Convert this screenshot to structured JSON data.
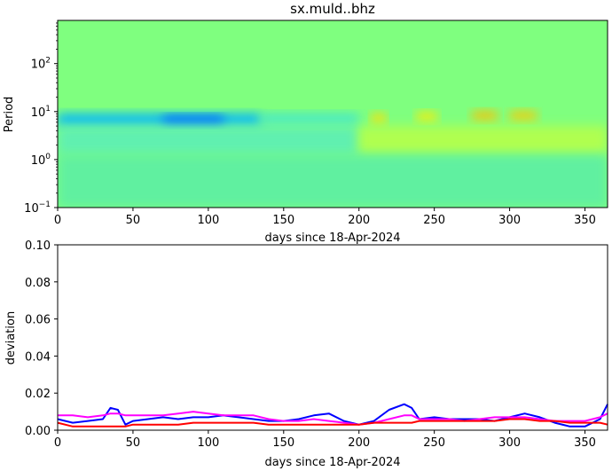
{
  "title": "sx.muld..bhz",
  "chart_data": [
    {
      "type": "heatmap",
      "xlabel": "days since 18-Apr-2024",
      "ylabel": "Period",
      "xlim": [
        0,
        365
      ],
      "ylim_log10": [
        -1,
        2.9
      ],
      "xticks": [
        0,
        50,
        100,
        150,
        200,
        250,
        300,
        350
      ],
      "yticks": [
        {
          "base": "10",
          "exp": "−1",
          "log10": -1
        },
        {
          "base": "10",
          "exp": "0",
          "log10": 0
        },
        {
          "base": "10",
          "exp": "1",
          "log10": 1
        },
        {
          "base": "10",
          "exp": "2",
          "log10": 2
        }
      ],
      "background_color": "#7fff7f",
      "features": [
        {
          "x0": 0,
          "x1": 135,
          "y0": 0.7,
          "y1": 0.95,
          "value": "low",
          "color": "#00b4ff"
        },
        {
          "x0": 70,
          "x1": 110,
          "y0": 0.72,
          "y1": 0.9,
          "value": "min",
          "color": "#0064ff"
        },
        {
          "x0": 135,
          "x1": 200,
          "y0": 0.75,
          "y1": 0.95,
          "value": "slightly-low",
          "color": "#40e6d0"
        },
        {
          "x0": 208,
          "x1": 218,
          "y0": 0.75,
          "y1": 0.95,
          "value": "high",
          "color": "#ffe000"
        },
        {
          "x0": 238,
          "x1": 252,
          "y0": 0.8,
          "y1": 0.98,
          "value": "high",
          "color": "#ffec00"
        },
        {
          "x0": 275,
          "x1": 292,
          "y0": 0.82,
          "y1": 1.0,
          "value": "max",
          "color": "#ffc000"
        },
        {
          "x0": 300,
          "x1": 318,
          "y0": 0.82,
          "y1": 1.0,
          "value": "max",
          "color": "#ffc800"
        },
        {
          "x0": 0,
          "x1": 200,
          "y0": 0.1,
          "y1": 0.7,
          "value": "slightly-low",
          "color": "#60f0b0"
        },
        {
          "x0": 200,
          "x1": 365,
          "y0": 0.1,
          "y1": 0.7,
          "value": "slightly-high",
          "color": "#b0ff50"
        },
        {
          "x0": 0,
          "x1": 365,
          "y0": -1,
          "y1": 0.1,
          "value": "slightly-low",
          "color": "#60f0a0"
        }
      ]
    },
    {
      "type": "line",
      "xlabel": "days since 18-Apr-2024",
      "ylabel": "deviation",
      "xlim": [
        0,
        365
      ],
      "ylim": [
        0,
        0.1
      ],
      "xticks": [
        0,
        50,
        100,
        150,
        200,
        250,
        300,
        350
      ],
      "yticks": [
        "0.00",
        "0.02",
        "0.04",
        "0.06",
        "0.08",
        "0.10"
      ],
      "x": [
        0,
        10,
        20,
        30,
        35,
        40,
        45,
        50,
        60,
        70,
        80,
        90,
        100,
        110,
        120,
        130,
        140,
        150,
        160,
        170,
        180,
        190,
        200,
        210,
        220,
        230,
        235,
        240,
        250,
        260,
        270,
        280,
        290,
        300,
        310,
        320,
        330,
        340,
        350,
        360,
        365
      ],
      "series": [
        {
          "name": "blue",
          "color": "#0000ff",
          "values": [
            0.006,
            0.004,
            0.005,
            0.006,
            0.012,
            0.011,
            0.003,
            0.005,
            0.006,
            0.007,
            0.006,
            0.007,
            0.007,
            0.008,
            0.007,
            0.006,
            0.005,
            0.005,
            0.006,
            0.008,
            0.009,
            0.005,
            0.003,
            0.005,
            0.011,
            0.014,
            0.012,
            0.006,
            0.007,
            0.006,
            0.006,
            0.006,
            0.005,
            0.007,
            0.009,
            0.007,
            0.004,
            0.002,
            0.002,
            0.006,
            0.014
          ]
        },
        {
          "name": "magenta",
          "color": "#ff00ff",
          "values": [
            0.008,
            0.008,
            0.007,
            0.008,
            0.009,
            0.009,
            0.008,
            0.008,
            0.008,
            0.008,
            0.009,
            0.01,
            0.009,
            0.008,
            0.008,
            0.008,
            0.006,
            0.005,
            0.005,
            0.006,
            0.005,
            0.004,
            0.003,
            0.004,
            0.006,
            0.008,
            0.008,
            0.006,
            0.006,
            0.006,
            0.005,
            0.006,
            0.007,
            0.007,
            0.007,
            0.006,
            0.005,
            0.005,
            0.005,
            0.007,
            0.009
          ]
        },
        {
          "name": "red",
          "color": "#ff0000",
          "values": [
            0.004,
            0.002,
            0.002,
            0.002,
            0.002,
            0.002,
            0.002,
            0.003,
            0.003,
            0.003,
            0.003,
            0.004,
            0.004,
            0.004,
            0.004,
            0.004,
            0.003,
            0.003,
            0.003,
            0.003,
            0.003,
            0.003,
            0.003,
            0.004,
            0.004,
            0.004,
            0.004,
            0.005,
            0.005,
            0.005,
            0.005,
            0.005,
            0.005,
            0.006,
            0.006,
            0.005,
            0.005,
            0.004,
            0.004,
            0.004,
            0.003
          ]
        }
      ]
    }
  ]
}
